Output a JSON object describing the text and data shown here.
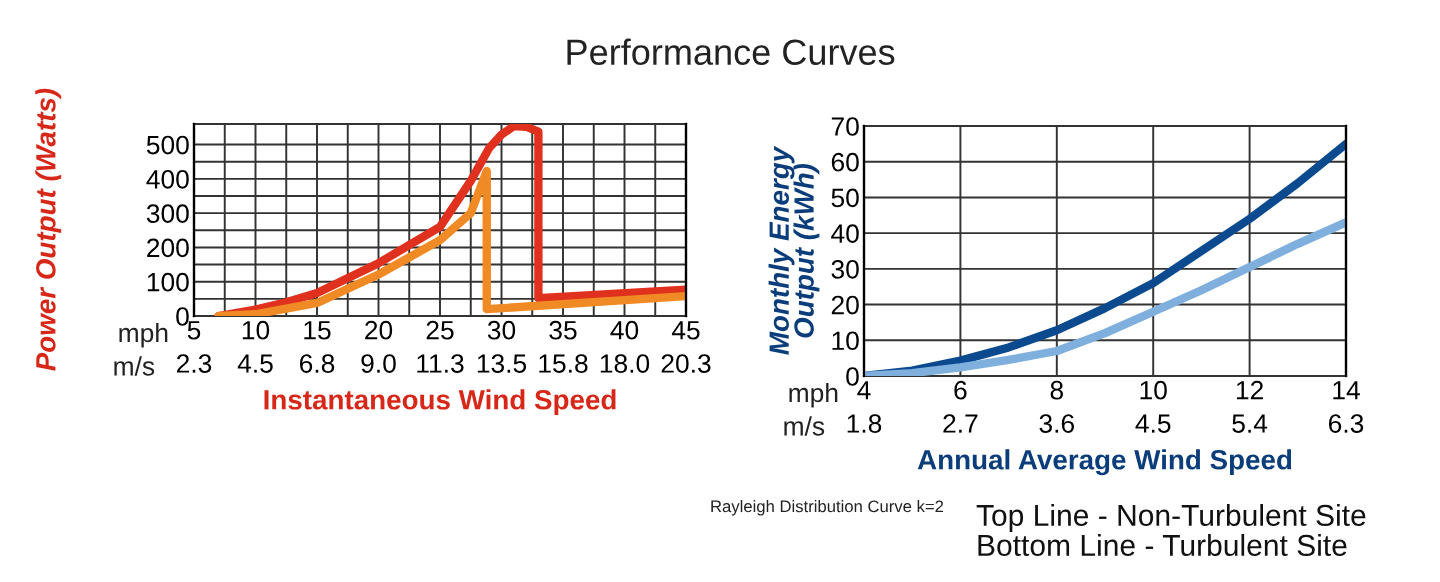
{
  "chart_data": [
    {
      "type": "line",
      "title": "Performance Curves",
      "xlabel": "Instantaneous Wind Speed",
      "ylabel": "Power Output (Watts)",
      "xlim": [
        5,
        45
      ],
      "ylim": [
        0,
        560
      ],
      "grid": true,
      "xticks": [
        5,
        {
          "value": 7.5,
          "label": null
        },
        10,
        {
          "value": 12.5,
          "label": null
        },
        15,
        {
          "value": 17.5,
          "label": null
        },
        20,
        {
          "value": 22.5,
          "label": null
        },
        25,
        {
          "value": 27.5,
          "label": null
        },
        30,
        {
          "value": 32.5,
          "label": null
        },
        35,
        {
          "value": 37.5,
          "label": null
        },
        40,
        {
          "value": 42.5,
          "label": null
        },
        45
      ],
      "x2lim": [
        2.25,
        20.25
      ],
      "x2ticks": [
        {
          "value": 2.25,
          "label": "2.3"
        },
        4.5,
        {
          "value": 6.75,
          "label": "6.8"
        },
        {
          "value": 9,
          "label": "9.0"
        },
        {
          "value": 11.25,
          "label": "11.3"
        },
        13.5,
        {
          "value": 15.75,
          "label": "15.8"
        },
        {
          "value": 18,
          "label": "18.0"
        },
        {
          "value": 20.25,
          "label": "20.3"
        }
      ],
      "yticks": [
        0,
        {
          "value": 50,
          "label": null
        },
        100,
        {
          "value": 150,
          "label": null
        },
        200,
        {
          "value": 250,
          "label": null
        },
        300,
        {
          "value": 350,
          "label": null
        },
        400,
        {
          "value": 450,
          "label": null
        },
        500
      ],
      "annotations": [
        "mph",
        "m/s"
      ],
      "series": [
        {
          "color": "#e0301e",
          "x": [
            7,
            10,
            12.5,
            15,
            20,
            25,
            27.5,
            29,
            30,
            31,
            32,
            33,
            33,
            45
          ],
          "values": [
            0,
            19,
            40,
            67,
            154,
            260,
            394,
            490,
            529,
            554,
            552,
            538,
            52,
            77
          ]
        },
        {
          "color": "#f08a24",
          "x": [
            7,
            10,
            15,
            20,
            25,
            27.5,
            28.8,
            28.8,
            45
          ],
          "values": [
            0,
            5,
            38,
            121,
            221,
            300,
            423,
            20,
            58
          ]
        }
      ]
    },
    {
      "type": "line",
      "xlabel": "Annual Average Wind Speed",
      "ylabel": "Monthly Energy\nOutput (kWh)",
      "xlim": [
        4,
        14
      ],
      "ylim": [
        0,
        70
      ],
      "grid": true,
      "xticks": [
        4,
        6,
        8,
        10,
        12,
        14
      ],
      "x2lim": [
        1.8,
        6.3
      ],
      "x2ticks": [
        1.8,
        2.7,
        3.6,
        4.5,
        5.4,
        6.3
      ],
      "yticks": [
        0,
        10,
        20,
        30,
        40,
        50,
        60,
        70
      ],
      "annotations": [
        "mph",
        "m/s",
        "Rayleigh Distribution Curve k=2",
        "Top Line - Non-Turbulent Site",
        "Bottom Line - Turbulent Site"
      ],
      "series": [
        {
          "color": "#0b4a8f",
          "x": [
            4,
            5,
            6,
            7,
            8,
            9,
            10,
            11,
            12,
            13,
            14
          ],
          "values": [
            0,
            1.5,
            4.3,
            8,
            12.8,
            19,
            26,
            35,
            44,
            54,
            65
          ]
        },
        {
          "color": "#7fb0dd",
          "x": [
            4,
            5,
            6,
            7,
            8,
            9,
            10,
            11,
            12,
            13,
            14
          ],
          "values": [
            0,
            0.8,
            2.4,
            4.5,
            7,
            12,
            18,
            24,
            30.5,
            37,
            43
          ]
        }
      ]
    }
  ]
}
